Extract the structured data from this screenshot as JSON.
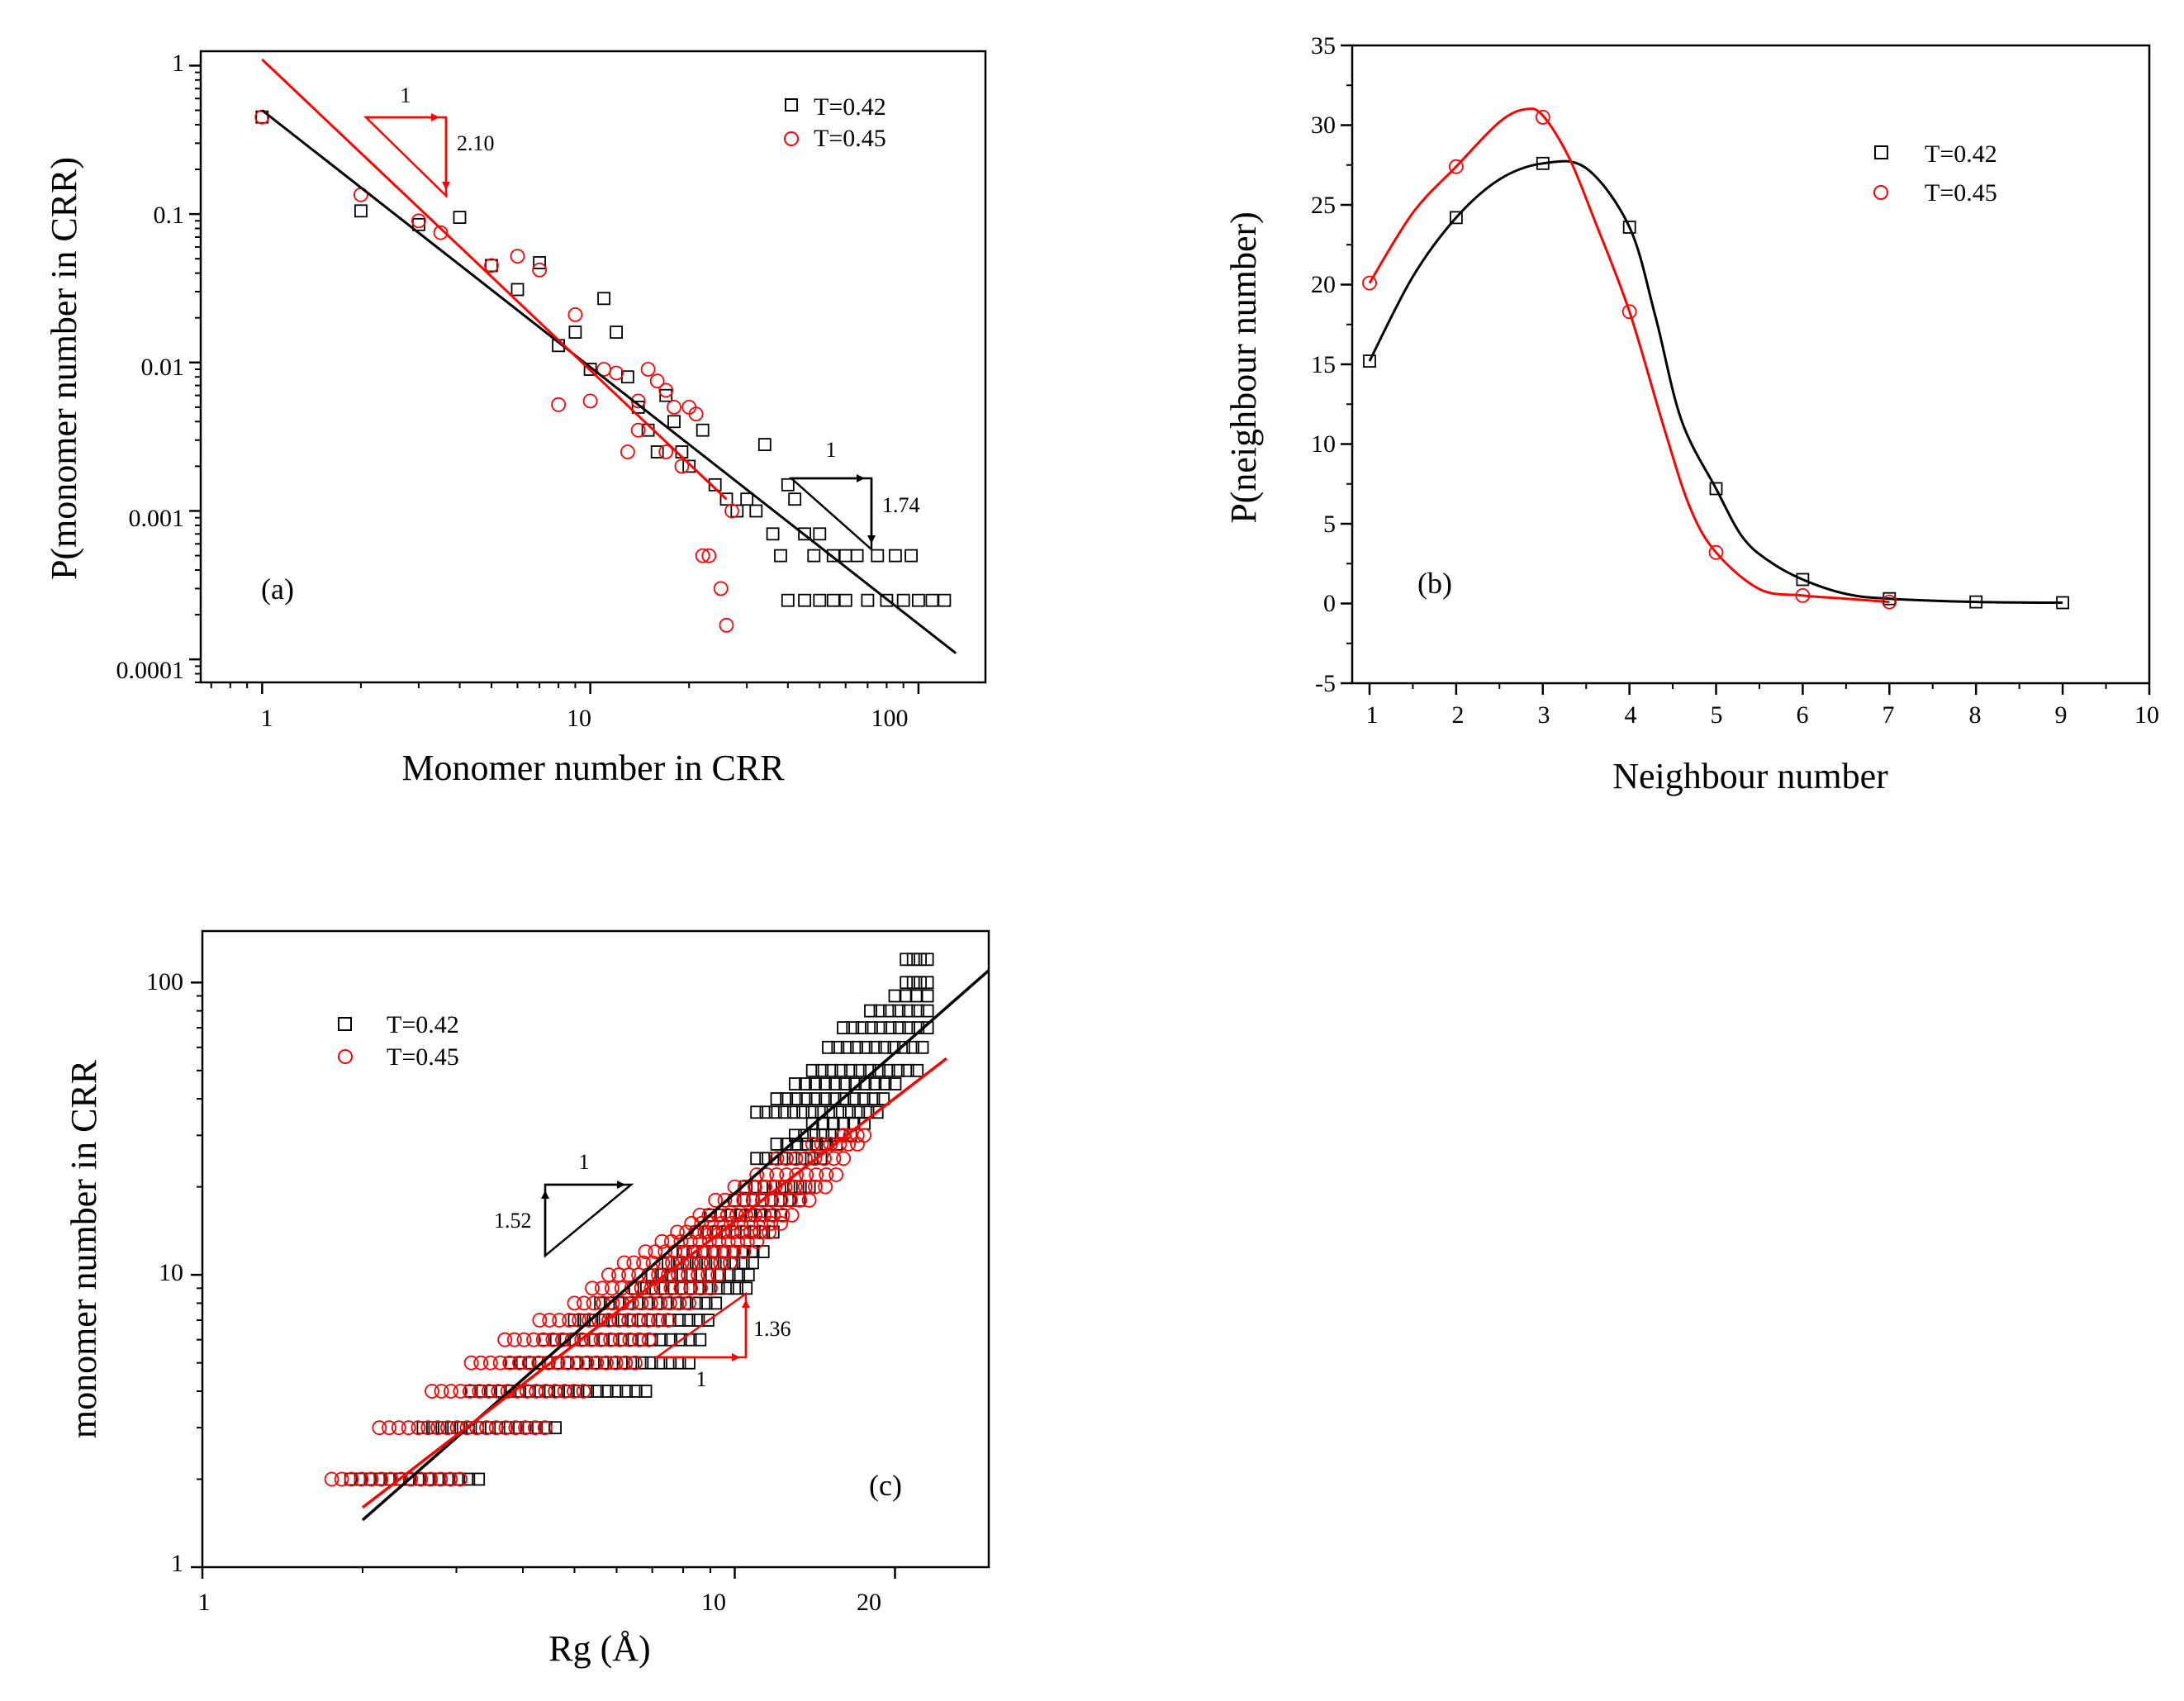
{
  "colors": {
    "black": "#000000",
    "red": "#ff0000"
  },
  "chart_data": [
    {
      "id": "a",
      "type": "scatter",
      "scale": "log-log",
      "panel_label": "(a)",
      "xlabel": "Monomer number in CRR",
      "ylabel": "P(monomer number in CRR)",
      "xlim": [
        0.65,
        160
      ],
      "ylim": [
        7e-05,
        1.25
      ],
      "x_ticks": [
        1,
        10,
        100
      ],
      "x_tick_labels": [
        "1",
        "10",
        "100"
      ],
      "y_ticks": [
        1,
        0.1,
        0.01,
        0.001,
        0.0001
      ],
      "y_tick_labels": [
        "1",
        "0.1",
        "0.01",
        "0.001",
        "0.0001"
      ],
      "legend": [
        "T=0.42",
        "T=0.45"
      ],
      "series": [
        {
          "name": "T=0.42",
          "color": "#000000",
          "marker": "square",
          "points": [
            [
              1,
              0.45
            ],
            [
              2,
              0.105
            ],
            [
              3,
              0.085
            ],
            [
              4,
              0.095
            ],
            [
              5,
              0.045
            ],
            [
              6,
              0.031
            ],
            [
              7,
              0.047
            ],
            [
              8,
              0.013
            ],
            [
              9,
              0.016
            ],
            [
              10,
              0.009
            ],
            [
              11,
              0.027
            ],
            [
              12,
              0.016
            ],
            [
              13,
              0.008
            ],
            [
              14,
              0.005
            ],
            [
              15,
              0.0035
            ],
            [
              16,
              0.0025
            ],
            [
              17,
              0.006
            ],
            [
              18,
              0.004
            ],
            [
              19,
              0.0025
            ],
            [
              20,
              0.002
            ],
            [
              22,
              0.0035
            ],
            [
              24,
              0.0015
            ],
            [
              26,
              0.0012
            ],
            [
              28,
              0.001
            ],
            [
              30,
              0.0012
            ],
            [
              32,
              0.001
            ],
            [
              34,
              0.0028
            ],
            [
              36,
              0.0007
            ],
            [
              38,
              0.0005
            ],
            [
              40,
              0.0015
            ],
            [
              42,
              0.0012
            ],
            [
              45,
              0.0007
            ],
            [
              48,
              0.0005
            ],
            [
              50,
              0.0007
            ],
            [
              55,
              0.0005
            ],
            [
              60,
              0.0005
            ],
            [
              65,
              0.0005
            ],
            [
              70,
              0.00025
            ],
            [
              75,
              0.0005
            ],
            [
              80,
              0.00025
            ],
            [
              85,
              0.0005
            ],
            [
              90,
              0.00025
            ],
            [
              95,
              0.0005
            ],
            [
              100,
              0.00025
            ],
            [
              110,
              0.00025
            ],
            [
              120,
              0.00025
            ],
            [
              40,
              0.00025
            ],
            [
              45,
              0.00025
            ],
            [
              50,
              0.00025
            ],
            [
              55,
              0.00025
            ],
            [
              60,
              0.00025
            ]
          ]
        },
        {
          "name": "T=0.45",
          "color": "#ff0000",
          "marker": "circle",
          "points": [
            [
              1,
              0.45
            ],
            [
              2,
              0.135
            ],
            [
              3,
              0.09
            ],
            [
              3.5,
              0.075
            ],
            [
              5,
              0.045
            ],
            [
              6,
              0.052
            ],
            [
              7,
              0.042
            ],
            [
              8,
              0.0052
            ],
            [
              9,
              0.021
            ],
            [
              10,
              0.0055
            ],
            [
              11,
              0.009
            ],
            [
              12,
              0.0085
            ],
            [
              13,
              0.0025
            ],
            [
              14,
              0.0055
            ],
            [
              15,
              0.009
            ],
            [
              16,
              0.0075
            ],
            [
              17,
              0.0025
            ],
            [
              18,
              0.005
            ],
            [
              19,
              0.002
            ],
            [
              20,
              0.005
            ],
            [
              21,
              0.0045
            ],
            [
              22,
              0.0005
            ],
            [
              23,
              0.0005
            ],
            [
              25,
              0.0003
            ],
            [
              26,
              0.00017
            ],
            [
              27,
              0.001
            ],
            [
              14,
              0.0035
            ],
            [
              17,
              0.0065
            ]
          ]
        }
      ],
      "fit_lines": [
        {
          "color": "#000000",
          "x": [
            1,
            130
          ],
          "y": [
            0.5,
            0.00011
          ]
        },
        {
          "color": "#ff0000",
          "x": [
            1,
            26
          ],
          "y": [
            1.1,
            0.0012
          ]
        }
      ],
      "slope_annotations": [
        {
          "color": "#ff0000",
          "run_label": "1",
          "rise_label": "2.10"
        },
        {
          "color": "#000000",
          "run_label": "1",
          "rise_label": "1.74"
        }
      ]
    },
    {
      "id": "b",
      "type": "line",
      "scale": "linear",
      "panel_label": "(b)",
      "xlabel": "Neighbour number",
      "ylabel": "P(neighbour number)",
      "xlim": [
        0.8,
        10
      ],
      "ylim": [
        -5,
        35
      ],
      "x_ticks": [
        1,
        2,
        3,
        4,
        5,
        6,
        7,
        8,
        9,
        10
      ],
      "x_tick_labels": [
        "1",
        "2",
        "3",
        "4",
        "5",
        "6",
        "7",
        "8",
        "9",
        "10"
      ],
      "y_ticks": [
        -5,
        0,
        5,
        10,
        15,
        20,
        25,
        30,
        35
      ],
      "y_tick_labels": [
        "-5",
        "0",
        "5",
        "10",
        "15",
        "20",
        "25",
        "30",
        "35"
      ],
      "legend": [
        "T=0.42",
        "T=0.45"
      ],
      "series": [
        {
          "name": "T=0.42",
          "color": "#000000",
          "marker": "square",
          "points": [
            [
              1,
              15.2
            ],
            [
              2,
              24.2
            ],
            [
              3,
              27.6
            ],
            [
              4,
              23.6
            ],
            [
              5,
              7.2
            ],
            [
              6,
              1.5
            ],
            [
              7,
              0.3
            ],
            [
              8,
              0.1
            ],
            [
              9,
              0.05
            ]
          ],
          "curve": [
            [
              1,
              15.2
            ],
            [
              1.5,
              20.5
            ],
            [
              2,
              24.2
            ],
            [
              2.5,
              26.6
            ],
            [
              3,
              27.6
            ],
            [
              3.5,
              27.3
            ],
            [
              4,
              23.6
            ],
            [
              4.3,
              18
            ],
            [
              4.6,
              11.5
            ],
            [
              5,
              7.2
            ],
            [
              5.3,
              4.2
            ],
            [
              5.6,
              2.7
            ],
            [
              6,
              1.5
            ],
            [
              6.5,
              0.6
            ],
            [
              7,
              0.3
            ],
            [
              8,
              0.1
            ],
            [
              9,
              0.05
            ]
          ]
        },
        {
          "name": "T=0.45",
          "color": "#ff0000",
          "marker": "circle",
          "points": [
            [
              1,
              20.1
            ],
            [
              2,
              27.4
            ],
            [
              3,
              30.5
            ],
            [
              4,
              18.3
            ],
            [
              5,
              3.2
            ],
            [
              6,
              0.5
            ],
            [
              7,
              0.1
            ]
          ],
          "curve": [
            [
              1,
              20.1
            ],
            [
              1.5,
              24.5
            ],
            [
              2,
              27.4
            ],
            [
              2.5,
              30.2
            ],
            [
              2.8,
              31
            ],
            [
              3,
              30.6
            ],
            [
              3.3,
              28
            ],
            [
              3.6,
              24
            ],
            [
              4,
              18.3
            ],
            [
              4.4,
              11
            ],
            [
              4.7,
              6
            ],
            [
              5,
              3.2
            ],
            [
              5.5,
              0.9
            ],
            [
              6,
              0.5
            ],
            [
              6.5,
              0.3
            ],
            [
              7,
              0.1
            ]
          ]
        }
      ]
    },
    {
      "id": "c",
      "type": "scatter",
      "scale": "log-log",
      "panel_label": "(c)",
      "xlabel": "Rg (Å)",
      "ylabel": "monomer number in CRR",
      "xlim": [
        1,
        30
      ],
      "ylim": [
        1,
        150
      ],
      "x_ticks": [
        1,
        10,
        20
      ],
      "x_tick_labels": [
        "1",
        "10",
        "20"
      ],
      "y_ticks": [
        1,
        10,
        100
      ],
      "y_tick_labels": [
        "1",
        "10",
        "100"
      ],
      "legend": [
        "T=0.42",
        "T=0.45"
      ],
      "series": [
        {
          "name": "T=0.42",
          "color": "#000000",
          "marker": "square",
          "bands": [
            [
              2,
              1.9,
              3.3
            ],
            [
              3,
              2.6,
              4.6
            ],
            [
              4,
              3.2,
              6.8
            ],
            [
              5,
              3.8,
              8.2
            ],
            [
              6,
              4.4,
              8.6
            ],
            [
              7,
              5.0,
              8.9
            ],
            [
              8,
              5.6,
              9.2
            ],
            [
              9,
              6.5,
              10.5
            ],
            [
              10,
              7.0,
              10.6
            ],
            [
              11,
              7.5,
              10.8
            ],
            [
              12,
              8.0,
              11.3
            ],
            [
              14,
              8.5,
              11.8
            ],
            [
              16,
              9.0,
              12.2
            ],
            [
              18,
              10.0,
              13.2
            ],
            [
              20,
              10.5,
              13.8
            ],
            [
              25,
              11,
              14.5
            ],
            [
              28,
              12,
              15.5
            ],
            [
              30,
              13,
              16.5
            ],
            [
              33,
              14,
              17.5
            ],
            [
              36,
              11,
              18.5
            ],
            [
              40,
              12,
              19
            ],
            [
              45,
              13,
              20
            ],
            [
              50,
              14,
              22
            ],
            [
              60,
              15,
              22.5
            ],
            [
              70,
              16,
              23
            ],
            [
              80,
              18,
              23
            ],
            [
              90,
              20,
              23
            ],
            [
              100,
              21,
              23
            ],
            [
              120,
              21,
              23
            ]
          ]
        },
        {
          "name": "T=0.45",
          "color": "#ff0000",
          "marker": "circle",
          "bands": [
            [
              2,
              1.75,
              3.05
            ],
            [
              3,
              2.15,
              4.4
            ],
            [
              4,
              2.7,
              5.2
            ],
            [
              5,
              3.2,
              6.5
            ],
            [
              6,
              3.7,
              6.9
            ],
            [
              7,
              4.3,
              7.5
            ],
            [
              8,
              5.0,
              8.2
            ],
            [
              9,
              5.4,
              9.0
            ],
            [
              10,
              5.8,
              9.3
            ],
            [
              11,
              6.2,
              9.8
            ],
            [
              12,
              6.8,
              10.4
            ],
            [
              13,
              7.3,
              11.0
            ],
            [
              14,
              7.8,
              11.6
            ],
            [
              15,
              8.3,
              12.2
            ],
            [
              16,
              8.6,
              12.8
            ],
            [
              18,
              9.2,
              13.8
            ],
            [
              20,
              10.0,
              14.8
            ],
            [
              22,
              11.0,
              15.5
            ],
            [
              25,
              12.0,
              16.0
            ],
            [
              28,
              14.0,
              17.0
            ],
            [
              30,
              16.0,
              17.5
            ]
          ]
        }
      ],
      "fit_lines": [
        {
          "color": "#000000",
          "x": [
            2,
            30
          ],
          "y": [
            1.45,
            110
          ]
        },
        {
          "color": "#ff0000",
          "x": [
            2,
            25
          ],
          "y": [
            1.6,
            55
          ]
        }
      ],
      "slope_annotations": [
        {
          "color": "#000000",
          "run_label": "1",
          "rise_label": "1.52"
        },
        {
          "color": "#ff0000",
          "run_label": "1",
          "rise_label": "1.36"
        }
      ]
    }
  ]
}
